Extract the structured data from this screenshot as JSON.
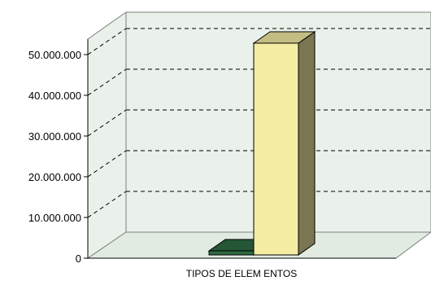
{
  "chart_data": {
    "type": "bar",
    "style": "3d",
    "xlabel": "TIPOS DE ELEM ENTOS",
    "ylim": [
      0,
      50000000
    ],
    "y_ticks": [
      "0",
      "10.000.000",
      "20.000.000",
      "30.000.000",
      "40.000.000",
      "50.000.000"
    ],
    "grid": true,
    "series": [
      {
        "color": "#2e6b43",
        "values": [
          1000000
        ]
      },
      {
        "color": "#f5eca4",
        "values": [
          52000000
        ]
      }
    ],
    "colors": {
      "wall": "#eaf1ea",
      "floor": "#e2ebe2",
      "grid": "#000000"
    }
  }
}
